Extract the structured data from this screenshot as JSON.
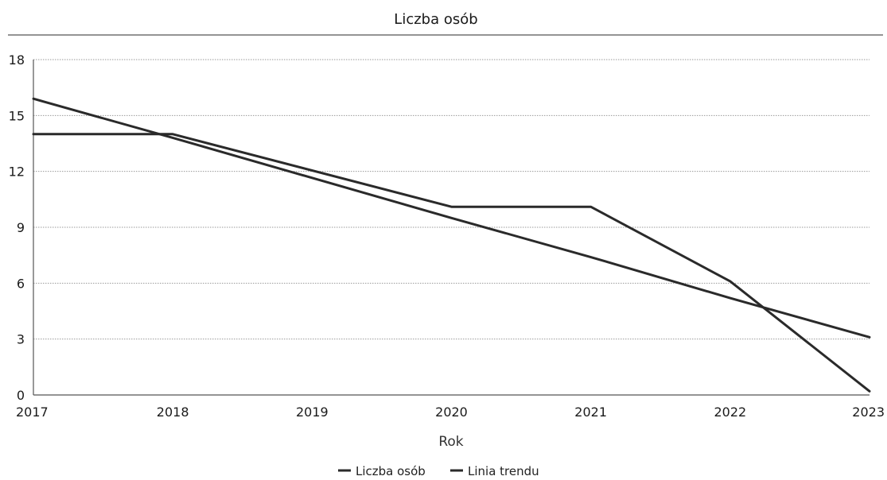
{
  "chart_data": {
    "type": "line",
    "title": "Liczba osób",
    "xlabel": "Rok",
    "ylabel": "",
    "x": [
      2017,
      2018,
      2019,
      2020,
      2021,
      2022,
      2023
    ],
    "xlim": [
      2017,
      2023
    ],
    "ylim": [
      0,
      18
    ],
    "yticks": [
      0,
      3,
      6,
      9,
      12,
      15,
      18
    ],
    "grid": true,
    "legend_position": "bottom",
    "series": [
      {
        "name": "Liczba osób",
        "values": [
          14,
          14,
          null,
          10.1,
          10.1,
          6.1,
          0.2
        ]
      },
      {
        "name": "Linia trendu",
        "values": [
          15.9,
          13.8,
          null,
          9.5,
          7.4,
          5.2,
          3.1
        ]
      }
    ],
    "colors": {
      "line": "#2a2a2a",
      "grid": "#9a9a9a",
      "axis": "#555555"
    }
  }
}
